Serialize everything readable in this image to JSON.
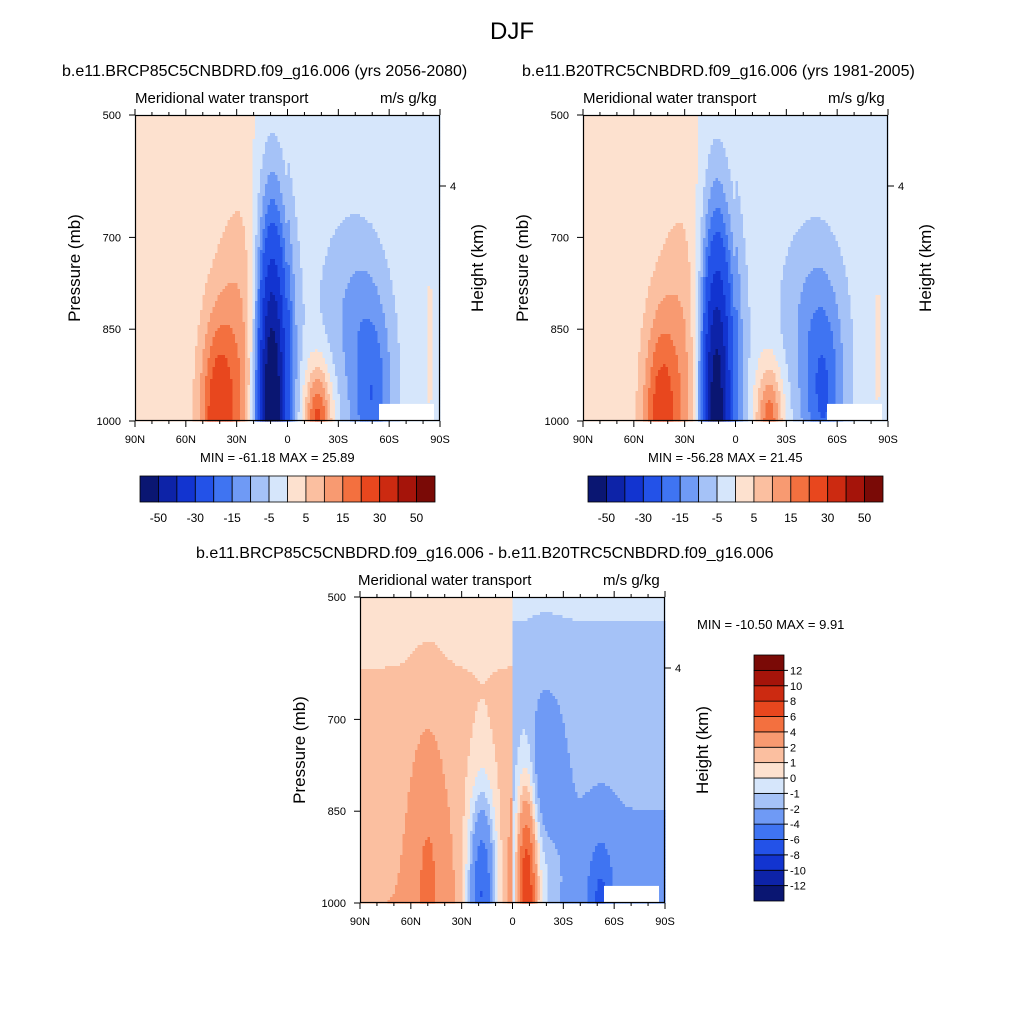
{
  "page": {
    "title": "DJF"
  },
  "chart_data": [
    {
      "type": "heatmap",
      "title": "b.e11.BRCP85C5CNBDRD.f09_g16.006 (yrs 2056-2080)",
      "left_subtitle": "Meridional water transport",
      "right_subtitle": "m/s g/kg",
      "ylabel": "Pressure (mb)",
      "ylabel_right": "Height (km)",
      "yticks": [
        "500",
        "700",
        "850",
        "1000"
      ],
      "ytick_values": [
        500,
        700,
        850,
        1000
      ],
      "yticks_right": [
        "4"
      ],
      "xticks": [
        "90N",
        "60N",
        "30N",
        "0",
        "30S",
        "60S",
        "90S"
      ],
      "xtick_values": [
        90,
        60,
        30,
        0,
        -30,
        -60,
        -90
      ],
      "xlim": [
        90,
        -90
      ],
      "ylim": [
        500,
        1000
      ],
      "min_text": "MIN = -61.18  MAX =  25.89",
      "min": -61.18,
      "max": 25.89,
      "colorbar": {
        "orientation": "horizontal",
        "colors": [
          "#0a1672",
          "#0d23a8",
          "#1234d0",
          "#2352e8",
          "#3f74f2",
          "#6f9af5",
          "#a5c2f7",
          "#d6e6fb",
          "#fde1cf",
          "#fbbfa0",
          "#f89a71",
          "#f3703f",
          "#e8471e",
          "#cc2a11",
          "#a5140a",
          "#7a0a06"
        ],
        "labels": [
          "-50",
          "-30",
          "-15",
          "-5",
          "5",
          "15",
          "30",
          "50"
        ]
      },
      "features": [
        {
          "lat": 42,
          "p": 1000,
          "value": 20,
          "lat_width": 10,
          "p_depth": 170
        },
        {
          "lat": 28,
          "p": 950,
          "value": 12,
          "lat_width": 14,
          "p_depth": 280
        },
        {
          "lat": 10,
          "p": 1000,
          "value": -61,
          "lat_width": 9,
          "p_depth": 300
        },
        {
          "lat": 3,
          "p": 900,
          "value": -10,
          "lat_width": 10,
          "p_depth": 260
        },
        {
          "lat": -18,
          "p": 1000,
          "value": 25,
          "lat_width": 8,
          "p_depth": 90
        },
        {
          "lat": -50,
          "p": 980,
          "value": -15,
          "lat_width": 12,
          "p_depth": 170
        },
        {
          "lat": -38,
          "p": 820,
          "value": -8,
          "lat_width": 20,
          "p_depth": 170
        },
        {
          "lat": -84,
          "p": 900,
          "value": 3,
          "lat_width": 3,
          "p_depth": 180
        }
      ]
    },
    {
      "type": "heatmap",
      "title": "b.e11.B20TRC5CNBDRD.f09_g16.006 (yrs 1981-2005)",
      "left_subtitle": "Meridional water transport",
      "right_subtitle": "m/s g/kg",
      "ylabel": "Pressure (mb)",
      "ylabel_right": "Height (km)",
      "yticks": [
        "500",
        "700",
        "850",
        "1000"
      ],
      "ytick_values": [
        500,
        700,
        850,
        1000
      ],
      "yticks_right": [
        "4"
      ],
      "xticks": [
        "90N",
        "60N",
        "30N",
        "0",
        "30S",
        "60S",
        "90S"
      ],
      "xtick_values": [
        90,
        60,
        30,
        0,
        -30,
        -60,
        -90
      ],
      "xlim": [
        90,
        -90
      ],
      "ylim": [
        500,
        1000
      ],
      "min_text": "MIN = -56.28  MAX =  21.45",
      "min": -56.28,
      "max": 21.45,
      "colorbar": {
        "orientation": "horizontal",
        "colors": [
          "#0a1672",
          "#0d23a8",
          "#1234d0",
          "#2352e8",
          "#3f74f2",
          "#6f9af5",
          "#a5c2f7",
          "#d6e6fb",
          "#fde1cf",
          "#fbbfa0",
          "#f89a71",
          "#f3703f",
          "#e8471e",
          "#cc2a11",
          "#a5140a",
          "#7a0a06"
        ],
        "labels": [
          "-50",
          "-30",
          "-15",
          "-5",
          "5",
          "15",
          "30",
          "50"
        ]
      },
      "features": [
        {
          "lat": 45,
          "p": 1000,
          "value": 18,
          "lat_width": 10,
          "p_depth": 170
        },
        {
          "lat": 32,
          "p": 950,
          "value": 10,
          "lat_width": 14,
          "p_depth": 280
        },
        {
          "lat": 12,
          "p": 1000,
          "value": -56,
          "lat_width": 9,
          "p_depth": 300
        },
        {
          "lat": 3,
          "p": 900,
          "value": -10,
          "lat_width": 10,
          "p_depth": 260
        },
        {
          "lat": -20,
          "p": 1000,
          "value": 21,
          "lat_width": 8,
          "p_depth": 90
        },
        {
          "lat": -52,
          "p": 980,
          "value": -15,
          "lat_width": 12,
          "p_depth": 170
        },
        {
          "lat": -45,
          "p": 830,
          "value": -8,
          "lat_width": 20,
          "p_depth": 170
        },
        {
          "lat": -84,
          "p": 900,
          "value": 3,
          "lat_width": 3,
          "p_depth": 180
        }
      ]
    },
    {
      "type": "heatmap",
      "title": "b.e11.BRCP85C5CNBDRD.f09_g16.006 - b.e11.B20TRC5CNBDRD.f09_g16.006",
      "left_subtitle": "Meridional water transport",
      "right_subtitle": "m/s g/kg",
      "ylabel": "Pressure (mb)",
      "ylabel_right": "Height (km)",
      "yticks": [
        "500",
        "700",
        "850",
        "1000"
      ],
      "ytick_values": [
        500,
        700,
        850,
        1000
      ],
      "yticks_right": [
        "4"
      ],
      "xticks": [
        "90N",
        "60N",
        "30N",
        "0",
        "30S",
        "60S",
        "90S"
      ],
      "xtick_values": [
        90,
        60,
        30,
        0,
        -30,
        -60,
        -90
      ],
      "xlim": [
        90,
        -90
      ],
      "ylim": [
        500,
        1000
      ],
      "min_text": "MIN = -10.50  MAX =   9.91",
      "min": -10.5,
      "max": 9.91,
      "colorbar": {
        "orientation": "vertical",
        "colors": [
          "#0a1672",
          "#0d23a8",
          "#1234d0",
          "#2352e8",
          "#3f74f2",
          "#6f9af5",
          "#a5c2f7",
          "#d6e6fb",
          "#fde1cf",
          "#fbbfa0",
          "#f89a71",
          "#f3703f",
          "#e8471e",
          "#cc2a11",
          "#a5140a",
          "#7a0a06"
        ],
        "labels": [
          "-12",
          "-10",
          "-8",
          "-6",
          "-4",
          "-2",
          "-1",
          "0",
          "1",
          "2",
          "4",
          "6",
          "8",
          "10",
          "12"
        ]
      },
      "features": [
        {
          "lat": 50,
          "p": 960,
          "value": 2.5,
          "lat_width": 10,
          "p_depth": 220
        },
        {
          "lat": 18,
          "p": 990,
          "value": -8,
          "lat_width": 8,
          "p_depth": 160
        },
        {
          "lat": -8,
          "p": 1000,
          "value": 9.9,
          "lat_width": 6,
          "p_depth": 180
        },
        {
          "lat": -18,
          "p": 950,
          "value": 2,
          "lat_width": 10,
          "p_depth": 120
        },
        {
          "lat": -52,
          "p": 990,
          "value": -4,
          "lat_width": 8,
          "p_depth": 100
        },
        {
          "lat": -20,
          "p": 800,
          "value": -2,
          "lat_width": 10,
          "p_depth": 140
        }
      ]
    }
  ]
}
